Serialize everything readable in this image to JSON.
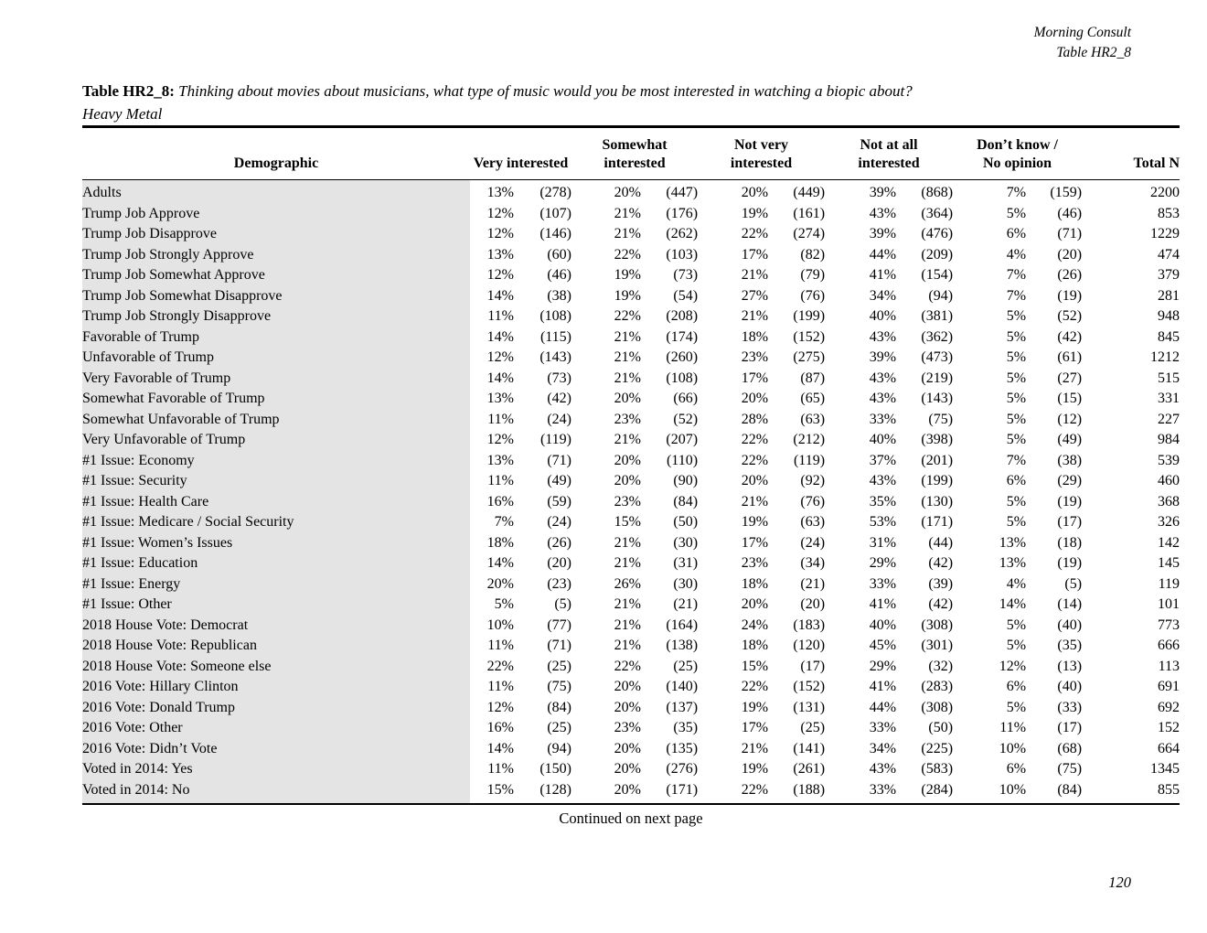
{
  "page": {
    "header_right_line1": "Morning Consult",
    "header_right_line2": "Table HR2_8",
    "title_label": "Table HR2_8:",
    "title_question": "Thinking about movies about musicians, what type of music would you be most interested in watching a biopic about?",
    "title_subject": "Heavy Metal",
    "footer_continued": "Continued on next page",
    "page_number": "120"
  },
  "table": {
    "columns": [
      "Demographic",
      "Very interested",
      "Somewhat\ninterested",
      "Not very\ninterested",
      "Not at all\ninterested",
      "Don’t know /\nNo opinion",
      "Total N"
    ],
    "rows": [
      {
        "label": "Adults",
        "cells": [
          "13%",
          "(278)",
          "20%",
          "(447)",
          "20%",
          "(449)",
          "39%",
          "(868)",
          "7%",
          "(159)"
        ],
        "total_n": "2200"
      },
      {
        "label": "Trump Job Approve",
        "cells": [
          "12%",
          "(107)",
          "21%",
          "(176)",
          "19%",
          "(161)",
          "43%",
          "(364)",
          "5%",
          "(46)"
        ],
        "total_n": "853"
      },
      {
        "label": "Trump Job Disapprove",
        "cells": [
          "12%",
          "(146)",
          "21%",
          "(262)",
          "22%",
          "(274)",
          "39%",
          "(476)",
          "6%",
          "(71)"
        ],
        "total_n": "1229"
      },
      {
        "label": "Trump Job Strongly Approve",
        "cells": [
          "13%",
          "(60)",
          "22%",
          "(103)",
          "17%",
          "(82)",
          "44%",
          "(209)",
          "4%",
          "(20)"
        ],
        "total_n": "474"
      },
      {
        "label": "Trump Job Somewhat Approve",
        "cells": [
          "12%",
          "(46)",
          "19%",
          "(73)",
          "21%",
          "(79)",
          "41%",
          "(154)",
          "7%",
          "(26)"
        ],
        "total_n": "379"
      },
      {
        "label": "Trump Job Somewhat Disapprove",
        "cells": [
          "14%",
          "(38)",
          "19%",
          "(54)",
          "27%",
          "(76)",
          "34%",
          "(94)",
          "7%",
          "(19)"
        ],
        "total_n": "281"
      },
      {
        "label": "Trump Job Strongly Disapprove",
        "cells": [
          "11%",
          "(108)",
          "22%",
          "(208)",
          "21%",
          "(199)",
          "40%",
          "(381)",
          "5%",
          "(52)"
        ],
        "total_n": "948"
      },
      {
        "label": "Favorable of Trump",
        "cells": [
          "14%",
          "(115)",
          "21%",
          "(174)",
          "18%",
          "(152)",
          "43%",
          "(362)",
          "5%",
          "(42)"
        ],
        "total_n": "845"
      },
      {
        "label": "Unfavorable of Trump",
        "cells": [
          "12%",
          "(143)",
          "21%",
          "(260)",
          "23%",
          "(275)",
          "39%",
          "(473)",
          "5%",
          "(61)"
        ],
        "total_n": "1212"
      },
      {
        "label": "Very Favorable of Trump",
        "cells": [
          "14%",
          "(73)",
          "21%",
          "(108)",
          "17%",
          "(87)",
          "43%",
          "(219)",
          "5%",
          "(27)"
        ],
        "total_n": "515"
      },
      {
        "label": "Somewhat Favorable of Trump",
        "cells": [
          "13%",
          "(42)",
          "20%",
          "(66)",
          "20%",
          "(65)",
          "43%",
          "(143)",
          "5%",
          "(15)"
        ],
        "total_n": "331"
      },
      {
        "label": "Somewhat Unfavorable of Trump",
        "cells": [
          "11%",
          "(24)",
          "23%",
          "(52)",
          "28%",
          "(63)",
          "33%",
          "(75)",
          "5%",
          "(12)"
        ],
        "total_n": "227"
      },
      {
        "label": "Very Unfavorable of Trump",
        "cells": [
          "12%",
          "(119)",
          "21%",
          "(207)",
          "22%",
          "(212)",
          "40%",
          "(398)",
          "5%",
          "(49)"
        ],
        "total_n": "984"
      },
      {
        "label": "#1 Issue: Economy",
        "cells": [
          "13%",
          "(71)",
          "20%",
          "(110)",
          "22%",
          "(119)",
          "37%",
          "(201)",
          "7%",
          "(38)"
        ],
        "total_n": "539"
      },
      {
        "label": "#1 Issue: Security",
        "cells": [
          "11%",
          "(49)",
          "20%",
          "(90)",
          "20%",
          "(92)",
          "43%",
          "(199)",
          "6%",
          "(29)"
        ],
        "total_n": "460"
      },
      {
        "label": "#1 Issue: Health Care",
        "cells": [
          "16%",
          "(59)",
          "23%",
          "(84)",
          "21%",
          "(76)",
          "35%",
          "(130)",
          "5%",
          "(19)"
        ],
        "total_n": "368"
      },
      {
        "label": "#1 Issue: Medicare / Social Security",
        "cells": [
          "7%",
          "(24)",
          "15%",
          "(50)",
          "19%",
          "(63)",
          "53%",
          "(171)",
          "5%",
          "(17)"
        ],
        "total_n": "326"
      },
      {
        "label": "#1 Issue: Women’s Issues",
        "cells": [
          "18%",
          "(26)",
          "21%",
          "(30)",
          "17%",
          "(24)",
          "31%",
          "(44)",
          "13%",
          "(18)"
        ],
        "total_n": "142"
      },
      {
        "label": "#1 Issue: Education",
        "cells": [
          "14%",
          "(20)",
          "21%",
          "(31)",
          "23%",
          "(34)",
          "29%",
          "(42)",
          "13%",
          "(19)"
        ],
        "total_n": "145"
      },
      {
        "label": "#1 Issue: Energy",
        "cells": [
          "20%",
          "(23)",
          "26%",
          "(30)",
          "18%",
          "(21)",
          "33%",
          "(39)",
          "4%",
          "(5)"
        ],
        "total_n": "119"
      },
      {
        "label": "#1 Issue: Other",
        "cells": [
          "5%",
          "(5)",
          "21%",
          "(21)",
          "20%",
          "(20)",
          "41%",
          "(42)",
          "14%",
          "(14)"
        ],
        "total_n": "101"
      },
      {
        "label": "2018 House Vote: Democrat",
        "cells": [
          "10%",
          "(77)",
          "21%",
          "(164)",
          "24%",
          "(183)",
          "40%",
          "(308)",
          "5%",
          "(40)"
        ],
        "total_n": "773"
      },
      {
        "label": "2018 House Vote: Republican",
        "cells": [
          "11%",
          "(71)",
          "21%",
          "(138)",
          "18%",
          "(120)",
          "45%",
          "(301)",
          "5%",
          "(35)"
        ],
        "total_n": "666"
      },
      {
        "label": "2018 House Vote: Someone else",
        "cells": [
          "22%",
          "(25)",
          "22%",
          "(25)",
          "15%",
          "(17)",
          "29%",
          "(32)",
          "12%",
          "(13)"
        ],
        "total_n": "113"
      },
      {
        "label": "2016 Vote: Hillary Clinton",
        "cells": [
          "11%",
          "(75)",
          "20%",
          "(140)",
          "22%",
          "(152)",
          "41%",
          "(283)",
          "6%",
          "(40)"
        ],
        "total_n": "691"
      },
      {
        "label": "2016 Vote: Donald Trump",
        "cells": [
          "12%",
          "(84)",
          "20%",
          "(137)",
          "19%",
          "(131)",
          "44%",
          "(308)",
          "5%",
          "(33)"
        ],
        "total_n": "692"
      },
      {
        "label": "2016 Vote: Other",
        "cells": [
          "16%",
          "(25)",
          "23%",
          "(35)",
          "17%",
          "(25)",
          "33%",
          "(50)",
          "11%",
          "(17)"
        ],
        "total_n": "152"
      },
      {
        "label": "2016 Vote: Didn’t Vote",
        "cells": [
          "14%",
          "(94)",
          "20%",
          "(135)",
          "21%",
          "(141)",
          "34%",
          "(225)",
          "10%",
          "(68)"
        ],
        "total_n": "664"
      },
      {
        "label": "Voted in 2014: Yes",
        "cells": [
          "11%",
          "(150)",
          "20%",
          "(276)",
          "19%",
          "(261)",
          "43%",
          "(583)",
          "6%",
          "(75)"
        ],
        "total_n": "1345"
      },
      {
        "label": "Voted in 2014: No",
        "cells": [
          "15%",
          "(128)",
          "20%",
          "(171)",
          "22%",
          "(188)",
          "33%",
          "(284)",
          "10%",
          "(84)"
        ],
        "total_n": "855"
      }
    ]
  }
}
